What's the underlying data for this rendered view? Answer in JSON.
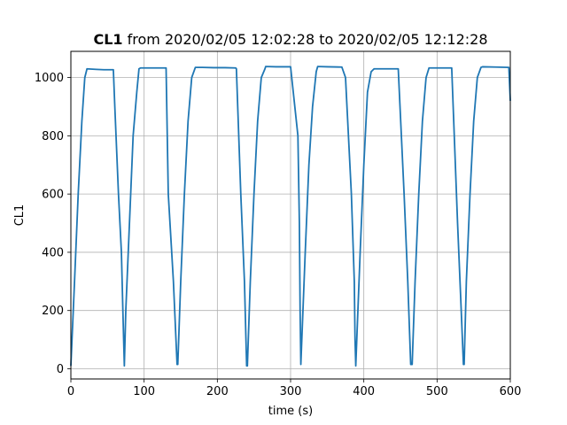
{
  "chart_data": {
    "type": "line",
    "title": {
      "bold": "CL1",
      "rest": " from 2020/02/05 12:02:28 to 2020/02/05 12:12:28"
    },
    "xlabel": "time (s)",
    "ylabel": "CL1",
    "xlim": [
      0,
      600
    ],
    "ylim": [
      -35,
      1090
    ],
    "xticks": [
      0,
      100,
      200,
      300,
      400,
      500,
      600
    ],
    "yticks": [
      0,
      200,
      400,
      600,
      800,
      1000
    ],
    "grid": true,
    "colors": {
      "line": "#1f77b4"
    },
    "series": [
      {
        "x": [
          0,
          5,
          10,
          15,
          19,
          22,
          35,
          45,
          58,
          60,
          65,
          69,
          71,
          73,
          75,
          80,
          85,
          90,
          93,
          95,
          105,
          115,
          130,
          133,
          140,
          145,
          146,
          150,
          155,
          160,
          165,
          170,
          180,
          195,
          210,
          225,
          226,
          232,
          237,
          240,
          241,
          245,
          250,
          255,
          260,
          265,
          266,
          280,
          300,
          310,
          312,
          313,
          314,
          320,
          325,
          330,
          335,
          337,
          350,
          370,
          375,
          383,
          387,
          388,
          389,
          395,
          400,
          405,
          410,
          414,
          416,
          430,
          445,
          447,
          455,
          460,
          464,
          466,
          470,
          475,
          480,
          485,
          489,
          491,
          500,
          520,
          522,
          528,
          533,
          536,
          537,
          540,
          545,
          550,
          555,
          560,
          562,
          580,
          598,
          600
        ],
        "y": [
          10,
          300,
          600,
          850,
          1000,
          1030,
          1028,
          1027,
          1027,
          900,
          600,
          400,
          200,
          10,
          200,
          500,
          800,
          950,
          1030,
          1033,
          1033,
          1033,
          1033,
          600,
          300,
          15,
          15,
          300,
          600,
          850,
          1000,
          1035,
          1035,
          1034,
          1034,
          1033,
          1030,
          600,
          300,
          10,
          10,
          300,
          600,
          850,
          1000,
          1030,
          1038,
          1037,
          1037,
          800,
          500,
          200,
          15,
          400,
          700,
          900,
          1020,
          1038,
          1037,
          1036,
          1000,
          600,
          300,
          100,
          10,
          400,
          700,
          950,
          1020,
          1030,
          1030,
          1030,
          1030,
          1030,
          600,
          300,
          15,
          15,
          300,
          600,
          850,
          1000,
          1033,
          1033,
          1033,
          1033,
          900,
          500,
          200,
          15,
          15,
          300,
          600,
          850,
          1000,
          1035,
          1037,
          1036,
          1035,
          920
        ]
      }
    ]
  }
}
